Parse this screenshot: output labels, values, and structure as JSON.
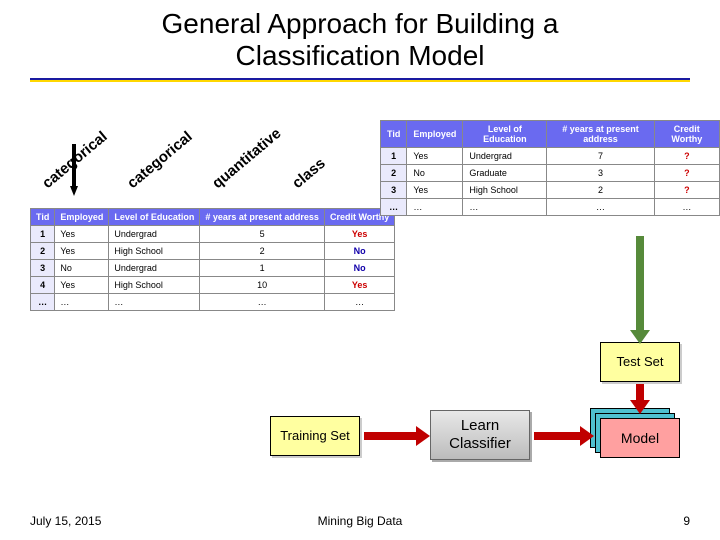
{
  "title_line1": "General Approach for Building a",
  "title_line2": "Classification Model",
  "rotated_labels": {
    "l1": "categorical",
    "l2": "categorical",
    "l3": "quantitative",
    "l4": "class"
  },
  "table_training": {
    "headers": {
      "tid": "Tid",
      "emp": "Employed",
      "edu": "Level of Education",
      "yrs": "# years at present address",
      "cw": "Credit Worthy"
    },
    "rows": [
      {
        "tid": "1",
        "emp": "Yes",
        "edu": "Undergrad",
        "yrs": "5",
        "cw": "Yes",
        "cw_cls": "yes"
      },
      {
        "tid": "2",
        "emp": "Yes",
        "edu": "High School",
        "yrs": "2",
        "cw": "No",
        "cw_cls": "no"
      },
      {
        "tid": "3",
        "emp": "No",
        "edu": "Undergrad",
        "yrs": "1",
        "cw": "No",
        "cw_cls": "no"
      },
      {
        "tid": "4",
        "emp": "Yes",
        "edu": "High School",
        "yrs": "10",
        "cw": "Yes",
        "cw_cls": "yes"
      },
      {
        "tid": "…",
        "emp": "…",
        "edu": "…",
        "yrs": "…",
        "cw": "…",
        "cw_cls": ""
      }
    ]
  },
  "table_test": {
    "headers": {
      "tid": "Tid",
      "emp": "Employed",
      "edu": "Level of Education",
      "yrs": "# years at present address",
      "cw": "Credit Worthy"
    },
    "rows": [
      {
        "tid": "1",
        "emp": "Yes",
        "edu": "Undergrad",
        "yrs": "7",
        "cw": "?"
      },
      {
        "tid": "2",
        "emp": "No",
        "edu": "Graduate",
        "yrs": "3",
        "cw": "?"
      },
      {
        "tid": "3",
        "emp": "Yes",
        "edu": "High School",
        "yrs": "2",
        "cw": "?"
      },
      {
        "tid": "…",
        "emp": "…",
        "edu": "…",
        "yrs": "…",
        "cw": "…"
      }
    ]
  },
  "boxes": {
    "testset": "Test Set",
    "training": "Training Set",
    "learn_line1": "Learn",
    "learn_line2": "Classifier",
    "model": "Model"
  },
  "colors": {
    "header_bg": "#6a6af0",
    "yellow_box": "#ffffa0",
    "grey_box": "#cccccc",
    "teal": "#4fc0cf",
    "pink": "#ffa0a0",
    "arrow_red": "#c00000",
    "arrow_green": "#568a3a"
  },
  "footer": {
    "date": "July 15, 2015",
    "center": "Mining Big Data",
    "page": "9"
  }
}
